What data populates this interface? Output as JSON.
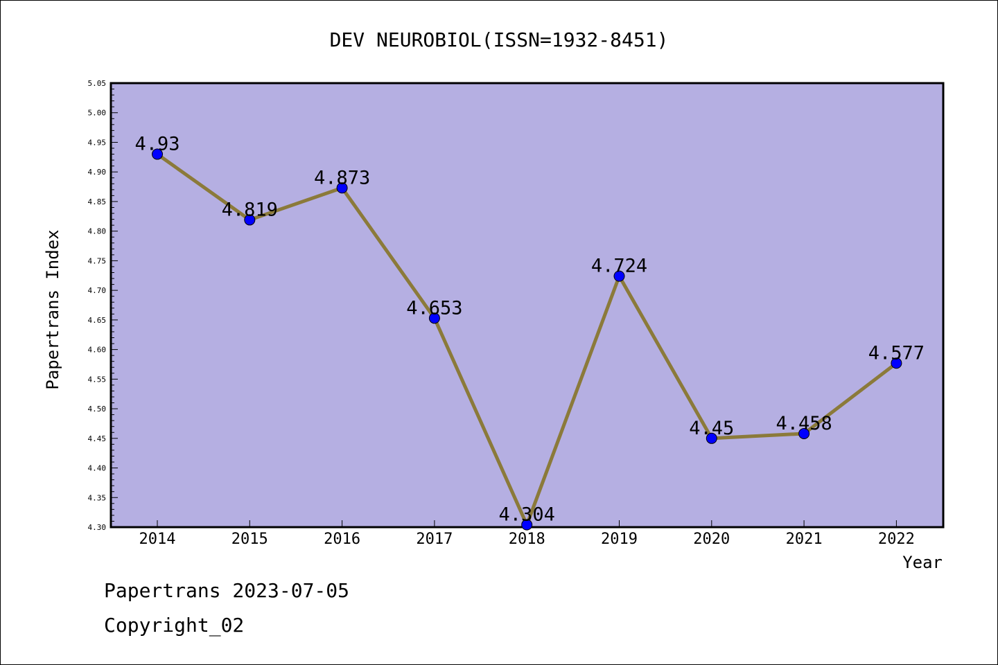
{
  "chart_data": {
    "type": "line",
    "title": "DEV NEUROBIOL(ISSN=1932-8451)",
    "xlabel": "Year",
    "ylabel": "Papertrans Index",
    "categories": [
      "2014",
      "2015",
      "2016",
      "2017",
      "2018",
      "2019",
      "2020",
      "2021",
      "2022"
    ],
    "series": [
      {
        "values": [
          4.93,
          4.819,
          4.873,
          4.653,
          4.304,
          4.724,
          4.45,
          4.458,
          4.577
        ],
        "labels": [
          "4.93",
          "4.819",
          "4.873",
          "4.653",
          "4.304",
          "4.724",
          "4.45",
          "4.458",
          "4.577"
        ]
      }
    ],
    "ylim": [
      4.3,
      5.05
    ],
    "yticks": [
      "4.30",
      "4.35",
      "4.40",
      "4.45",
      "4.50",
      "4.55",
      "4.60",
      "4.65",
      "4.70",
      "4.75",
      "4.80",
      "4.85",
      "4.90",
      "4.95",
      "5.00",
      "5.05"
    ],
    "grid": false,
    "colors": {
      "plot_background": "#b5afe2",
      "line": "#8b7a3a",
      "marker": "#0000ff"
    }
  },
  "footer": {
    "line1": "Papertrans 2023-07-05",
    "line2": "Copyright_02"
  }
}
